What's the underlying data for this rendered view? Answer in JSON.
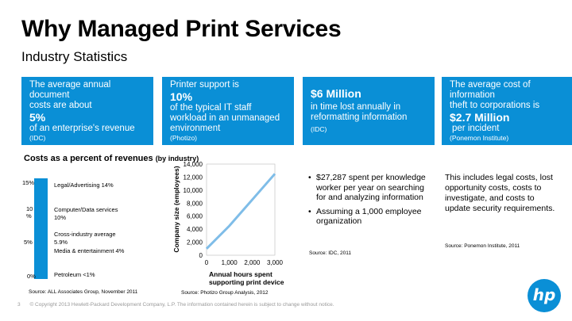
{
  "title": "Why Managed Print Services",
  "subtitle": "Industry Statistics",
  "boxes": [
    {
      "line1": "The average annual document",
      "line2": "costs are about",
      "big": "5%",
      "line3": "of an enterprise's revenue",
      "source": "(IDC)"
    },
    {
      "line1": "Printer support is",
      "big": "10%",
      "line2": "of the typical IT staff workload  in an unmanaged environment",
      "source": "(Photizo)"
    },
    {
      "big": "$6 Million",
      "line1": "in time lost annually in reformatting information",
      "source": "(IDC)"
    },
    {
      "line1": "The average cost of information",
      "line2": "theft to corporations is",
      "big": "$2.7 Million",
      "line3": "per incident",
      "source": "(Ponemon Institute)"
    }
  ],
  "costs": {
    "title": "Costs as a percent of revenues",
    "title_sub": "(by industry)",
    "scale": [
      "15%",
      "10 %",
      "5%",
      "0%"
    ],
    "categories": [
      "Legal/Advertising  14%",
      "Computer/Data services 10%",
      "Cross-industry average 5.9%",
      "Media & entertainment  4%",
      "Petroleum  <1%"
    ],
    "source": "Source:  ALL Associates Group, November 2011"
  },
  "chart_data": {
    "type": "line",
    "x": [
      0,
      1000,
      2000,
      3000
    ],
    "x_ticks": [
      "0",
      "1,000",
      "2,000",
      "3,000"
    ],
    "series": [
      {
        "values": [
          1000,
          4500,
          8500,
          12500
        ]
      }
    ],
    "ylim": [
      0,
      14000
    ],
    "y_ticks": [
      "0",
      "2,000",
      "4,000",
      "6,000",
      "8,000",
      "10,000",
      "12,000",
      "14,000"
    ],
    "xlabel": "Annual hours spent supporting print device",
    "ylabel": "Company size (employees)",
    "source": "Source:  Photizo Group Analysis, 2012",
    "line_color": "#7fbde8"
  },
  "bullets": {
    "items": [
      "$27,287 spent per knowledge worker per year on searching for and analyzing information",
      "Assuming a 1,000 employee organization"
    ],
    "source": "Source: IDC, 2011"
  },
  "note": {
    "text": "This includes legal costs, lost opportunity costs, costs to investigate, and costs to update security requirements.",
    "source": "Source: Ponemon Institute, 2011"
  },
  "footer": {
    "page": "3",
    "copyright": "© Copyright 2013 Hewlett-Packard Development Company, L.P.  The information contained herein is subject to change without notice."
  },
  "logo": {
    "text": "hp",
    "color": "#0a8fd6"
  }
}
